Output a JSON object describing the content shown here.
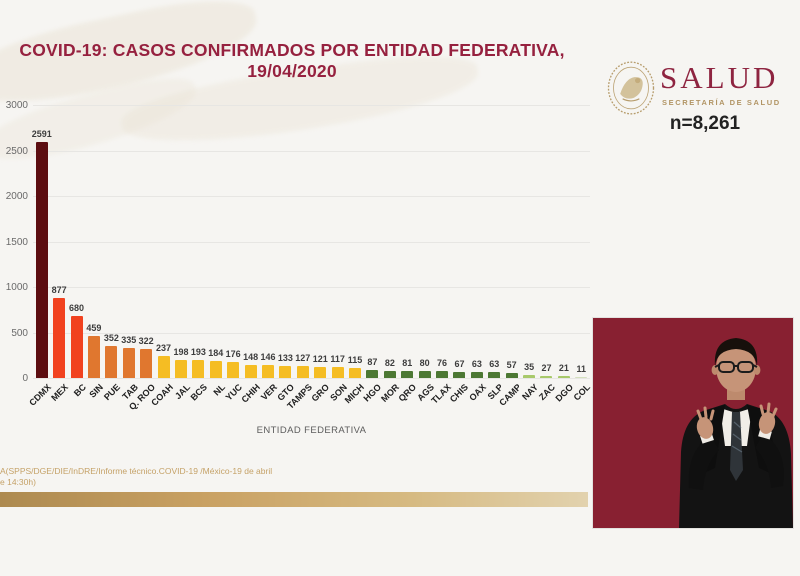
{
  "header": {
    "title_line1": "COVID-19: CASOS CONFIRMADOS POR ENTIDAD FEDERATIVA,",
    "title_line2": "19/04/2020",
    "logo": {
      "wordmark": "SALUD",
      "subtitle": "SECRETARÍA DE SALUD"
    },
    "total_label": "n=8,261"
  },
  "chart_data": {
    "type": "bar",
    "title": "COVID-19: CASOS CONFIRMADOS POR ENTIDAD FEDERATIVA, 19/04/2020",
    "xlabel": "ENTIDAD FEDERATIVA",
    "ylabel": "",
    "ylim": [
      0,
      3000
    ],
    "yticks": [
      0,
      500,
      1000,
      1500,
      2000,
      2500,
      3000
    ],
    "grid": true,
    "legend": false,
    "categories": [
      "CDMX",
      "MEX",
      "BC",
      "SIN",
      "PUE",
      "TAB",
      "Q. ROO",
      "COAH",
      "JAL",
      "BCS",
      "NL",
      "YUC",
      "CHIH",
      "VER",
      "GTO",
      "TAMPS",
      "GRO",
      "SON",
      "MICH",
      "HGO",
      "MOR",
      "QRO",
      "AGS",
      "TLAX",
      "CHIS",
      "OAX",
      "SLP",
      "CAMP",
      "NAY",
      "ZAC",
      "DGO",
      "COL"
    ],
    "values": [
      2591,
      877,
      680,
      459,
      352,
      335,
      322,
      237,
      198,
      193,
      184,
      176,
      148,
      146,
      133,
      127,
      121,
      117,
      115,
      87,
      82,
      81,
      80,
      76,
      67,
      63,
      63,
      57,
      35,
      27,
      21,
      11
    ],
    "bar_colors": [
      "#5c0d10",
      "#f1421f",
      "#f1421f",
      "#e0772f",
      "#e0772f",
      "#e0772f",
      "#e0772f",
      "#f5bd23",
      "#f5bd23",
      "#f5bd23",
      "#f5bd23",
      "#f5bd23",
      "#f5bd23",
      "#f5bd23",
      "#f5bd23",
      "#f5bd23",
      "#f5bd23",
      "#f5bd23",
      "#f5bd23",
      "#4c7833",
      "#4c7833",
      "#4c7833",
      "#4c7833",
      "#4c7833",
      "#4c7833",
      "#4c7833",
      "#4c7833",
      "#4c7833",
      "#a8c96a",
      "#a8c96a",
      "#a8c96a",
      "#d4e0bd"
    ]
  },
  "footer": {
    "source_line1": "A(SPPS/DGE/DIE/InDRE/Informe técnico.COVID-19 /México-19 de abril",
    "source_line2": "e 14:30h)"
  },
  "colors": {
    "page_background": "#f6f5f2",
    "title_text": "#96213f",
    "logo_wordmark": "#8e2440",
    "logo_gold": "#b29565",
    "gridline": "#e7e6e3",
    "source_text": "#c5a268",
    "gold_bar": "#c9a163",
    "video_background": "#8c2133"
  }
}
